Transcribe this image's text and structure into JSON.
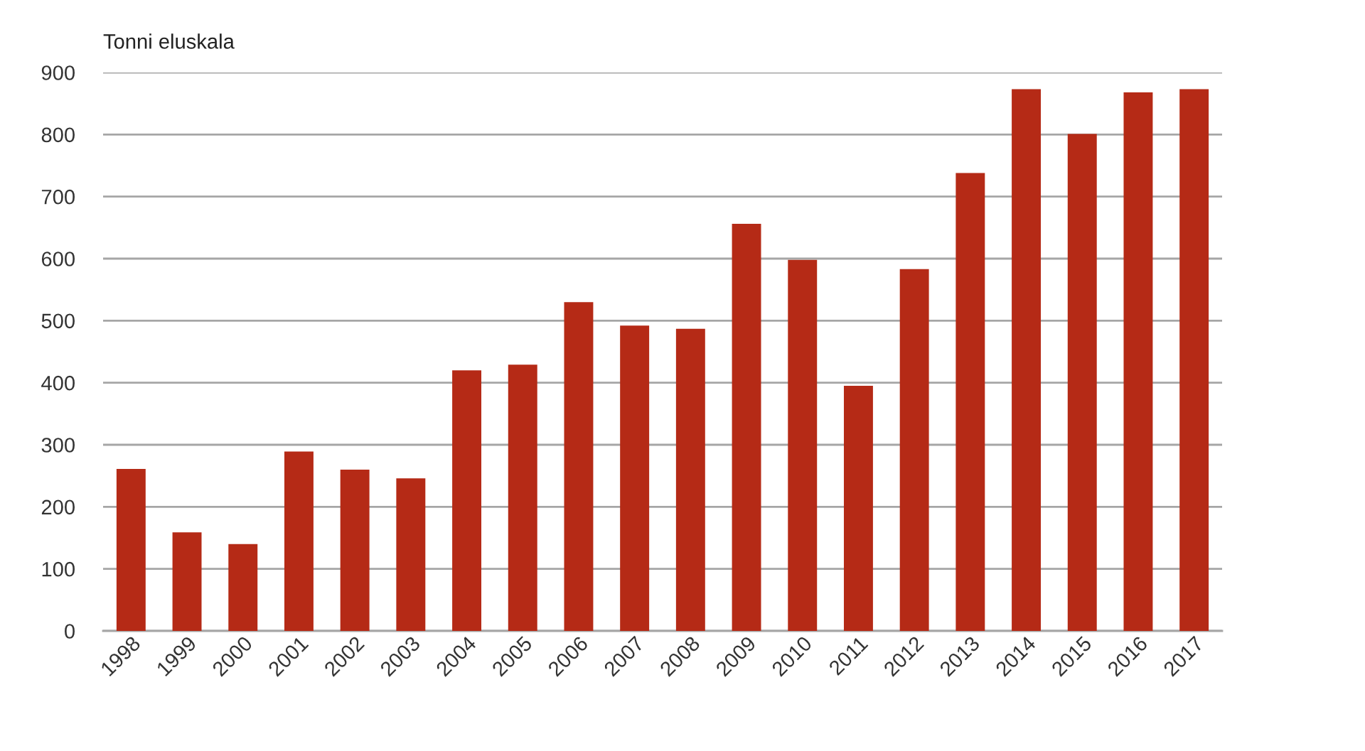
{
  "chart_data": {
    "type": "bar",
    "ylabel": "Tonni eluskala",
    "categories": [
      "1998",
      "1999",
      "2000",
      "2001",
      "2002",
      "2003",
      "2004",
      "2005",
      "2006",
      "2007",
      "2008",
      "2009",
      "2010",
      "2011",
      "2012",
      "2013",
      "2014",
      "2015",
      "2016",
      "2017"
    ],
    "values": [
      261,
      159,
      140,
      289,
      260,
      246,
      420,
      429,
      530,
      492,
      487,
      656,
      598,
      395,
      583,
      738,
      873,
      801,
      868,
      873
    ],
    "color": "#b52a16",
    "ylim": [
      0,
      900
    ],
    "yticks": [
      0,
      100,
      200,
      300,
      400,
      500,
      600,
      700,
      800,
      900
    ],
    "grid": "y"
  }
}
